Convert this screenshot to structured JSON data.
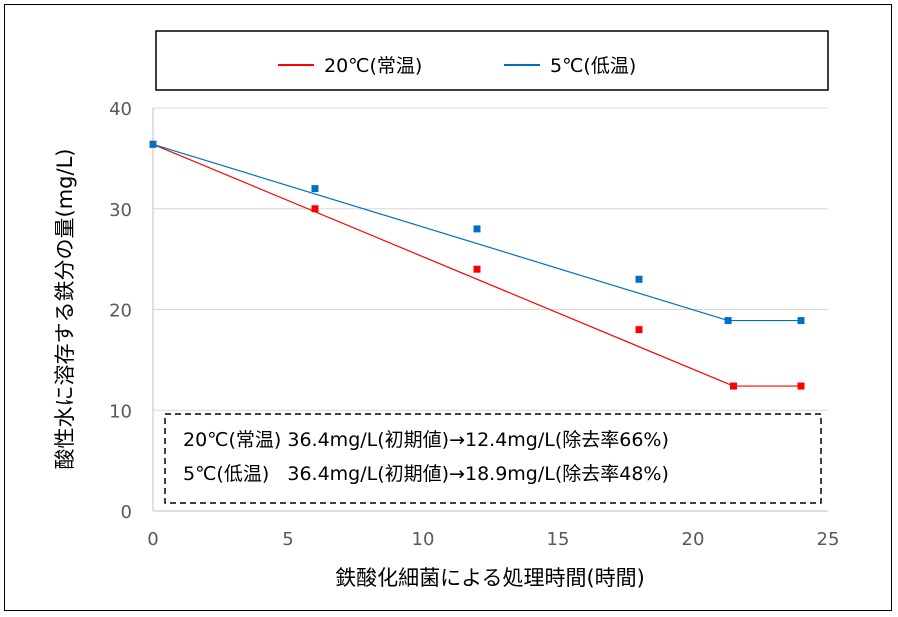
{
  "chart_data": {
    "type": "line",
    "title": "",
    "xlabel": "鉄酸化細菌による処理時間(時間)",
    "ylabel": "酸性水に溶存する鉄分の量(mg/L)",
    "xlim": [
      0,
      25
    ],
    "ylim": [
      0,
      40
    ],
    "xticks": [
      "0",
      "5",
      "10",
      "15",
      "20",
      "25"
    ],
    "yticks": [
      "0",
      "10",
      "20",
      "30",
      "40"
    ],
    "grid": "horizontal",
    "legend_placement": "top",
    "series": [
      {
        "name": "20℃(常温)",
        "color": "#ff0000",
        "points": [
          {
            "x": 0,
            "y": 36.4
          },
          {
            "x": 6,
            "y": 30
          },
          {
            "x": 12,
            "y": 24
          },
          {
            "x": 18,
            "y": 18
          },
          {
            "x": 21.5,
            "y": 12.4
          },
          {
            "x": 24,
            "y": 12.4
          }
        ],
        "trend": [
          {
            "x": 0,
            "y": 36.4
          },
          {
            "x": 21.5,
            "y": 12.4
          },
          {
            "x": 24,
            "y": 12.4
          }
        ]
      },
      {
        "name": "5℃(低温)",
        "color": "#0070c0",
        "points": [
          {
            "x": 0,
            "y": 36.4
          },
          {
            "x": 6,
            "y": 32
          },
          {
            "x": 12,
            "y": 28
          },
          {
            "x": 18,
            "y": 23
          },
          {
            "x": 21.3,
            "y": 18.9
          },
          {
            "x": 24,
            "y": 18.9
          }
        ],
        "trend": [
          {
            "x": 0,
            "y": 36.4
          },
          {
            "x": 21.3,
            "y": 18.9
          },
          {
            "x": 24,
            "y": 18.9
          }
        ]
      }
    ],
    "annotations": [
      "20℃(常温) 36.4mg/L(初期値)→12.4mg/L(除去率66%)",
      "5℃(低温)   36.4mg/L(初期値)→18.9mg/L(除去率48%)"
    ]
  }
}
